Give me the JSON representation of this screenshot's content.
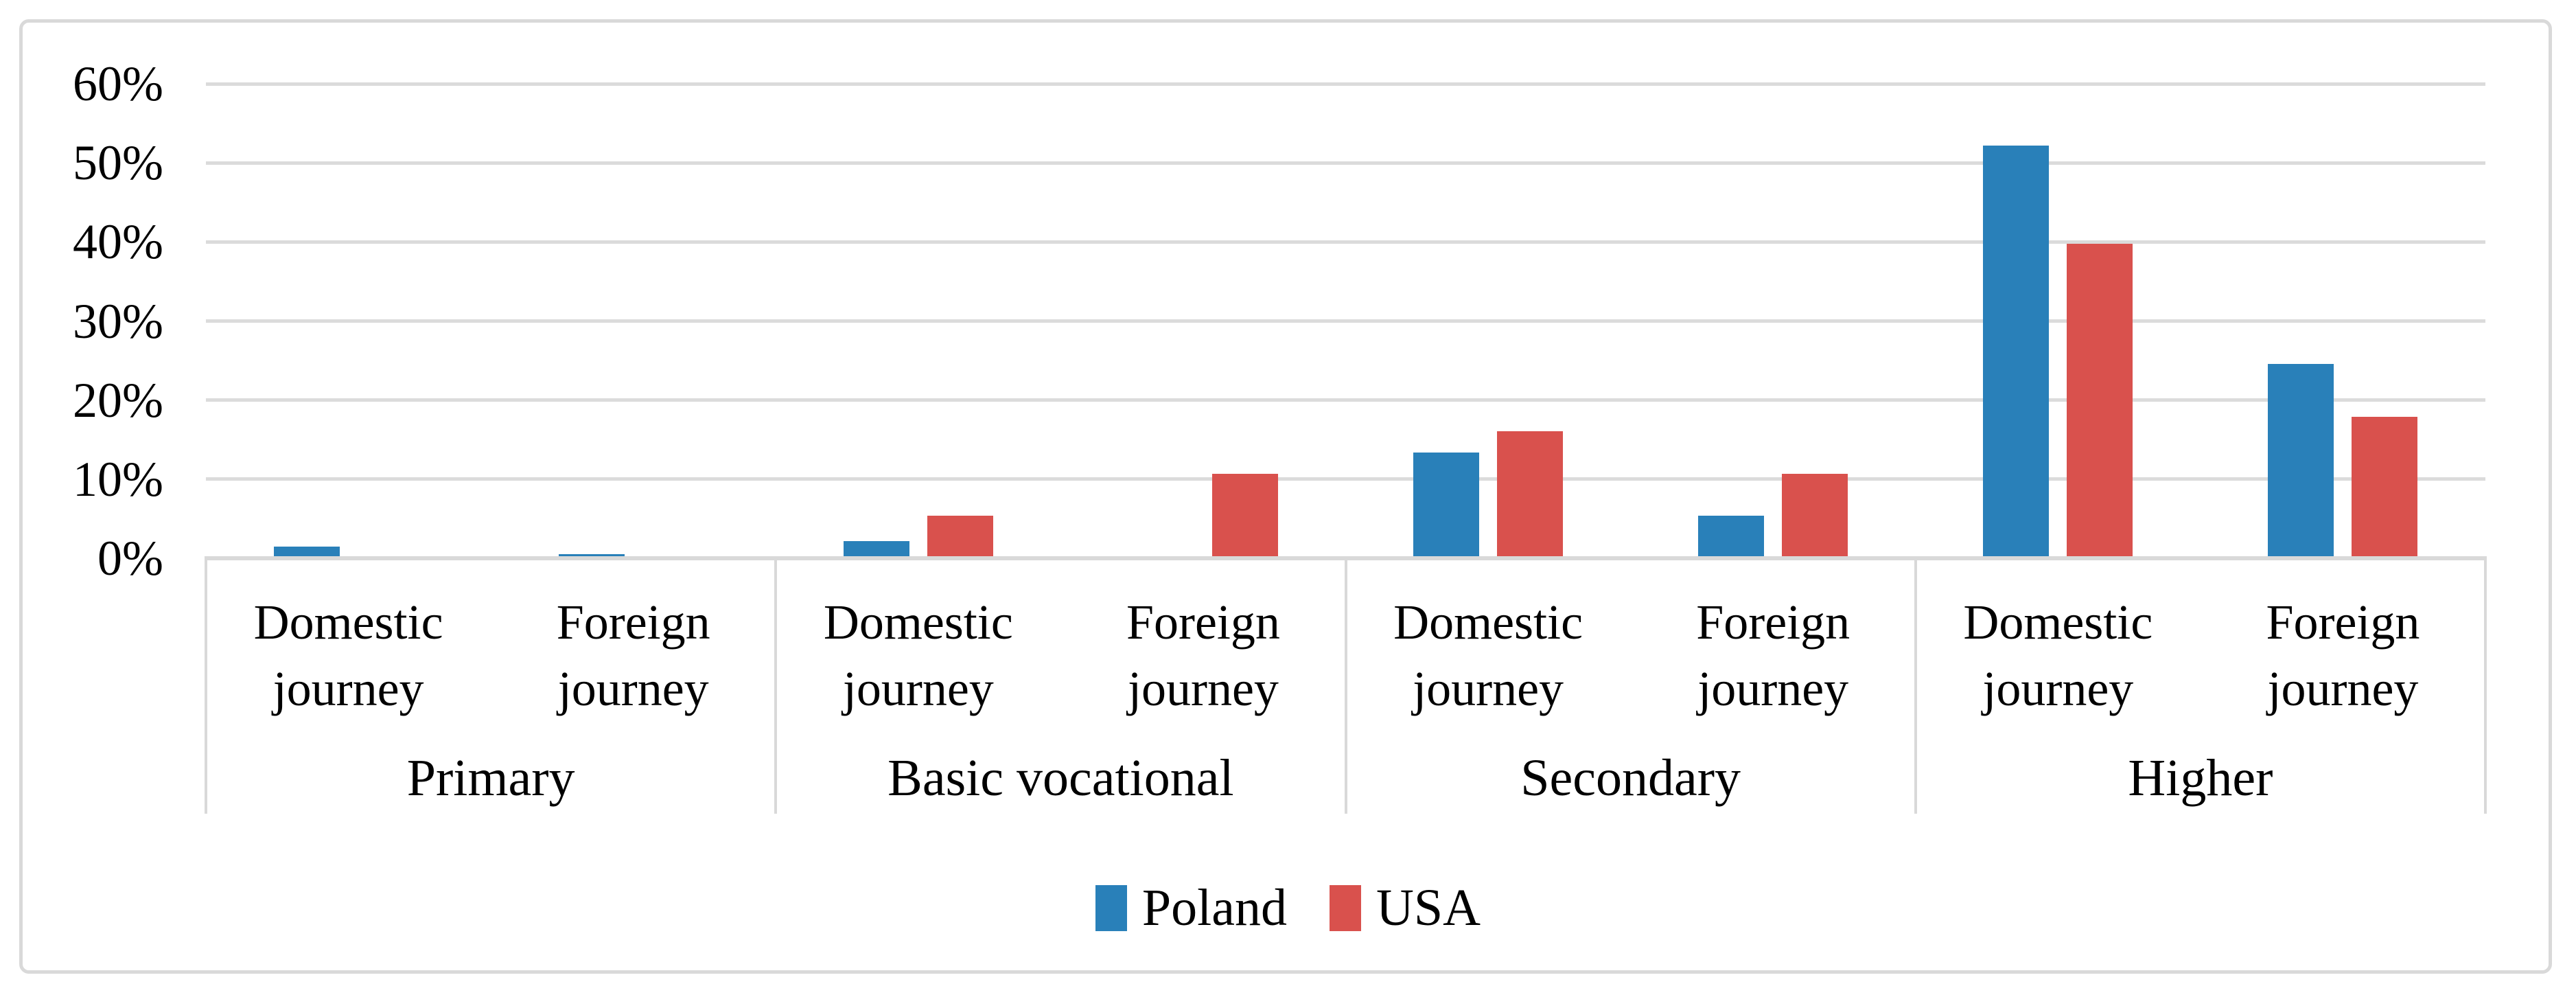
{
  "figure": {
    "background": "#FFFFFF",
    "border_color": "#D9D9D9"
  },
  "chart_data": {
    "type": "bar",
    "title": "",
    "xlabel": "",
    "ylabel": "",
    "groups": [
      "Primary",
      "Basic vocational",
      "Secondary",
      "Higher"
    ],
    "subcategories": [
      "Domestic journey",
      "Foreign journey"
    ],
    "categories": [
      "Primary - Domestic journey",
      "Primary - Foreign journey",
      "Basic vocational - Domestic journey",
      "Basic vocational - Foreign journey",
      "Secondary - Domestic journey",
      "Secondary - Foreign journey",
      "Higher - Domestic journey",
      "Higher - Foreign journey"
    ],
    "series": [
      {
        "name": "Poland",
        "color": "#2980B9",
        "values": [
          1.5,
          0.5,
          2.2,
          0,
          13.4,
          5.4,
          52.2,
          24.6
        ]
      },
      {
        "name": "USA",
        "color": "#D9514D",
        "values": [
          0,
          0,
          5.4,
          10.7,
          16.1,
          10.7,
          39.8,
          17.9
        ]
      }
    ],
    "ylim": [
      0,
      60
    ],
    "ytick_step": 10,
    "yticks": [
      "0%",
      "10%",
      "20%",
      "30%",
      "40%",
      "50%",
      "60%"
    ],
    "grid": true,
    "gridline_color": "#DBDBDB",
    "axis_color": "#D9D9D9",
    "legend_position": "bottom"
  },
  "legend": {
    "items": [
      {
        "label": "Poland",
        "color": "#2980B9"
      },
      {
        "label": "USA",
        "color": "#D9514D"
      }
    ]
  }
}
